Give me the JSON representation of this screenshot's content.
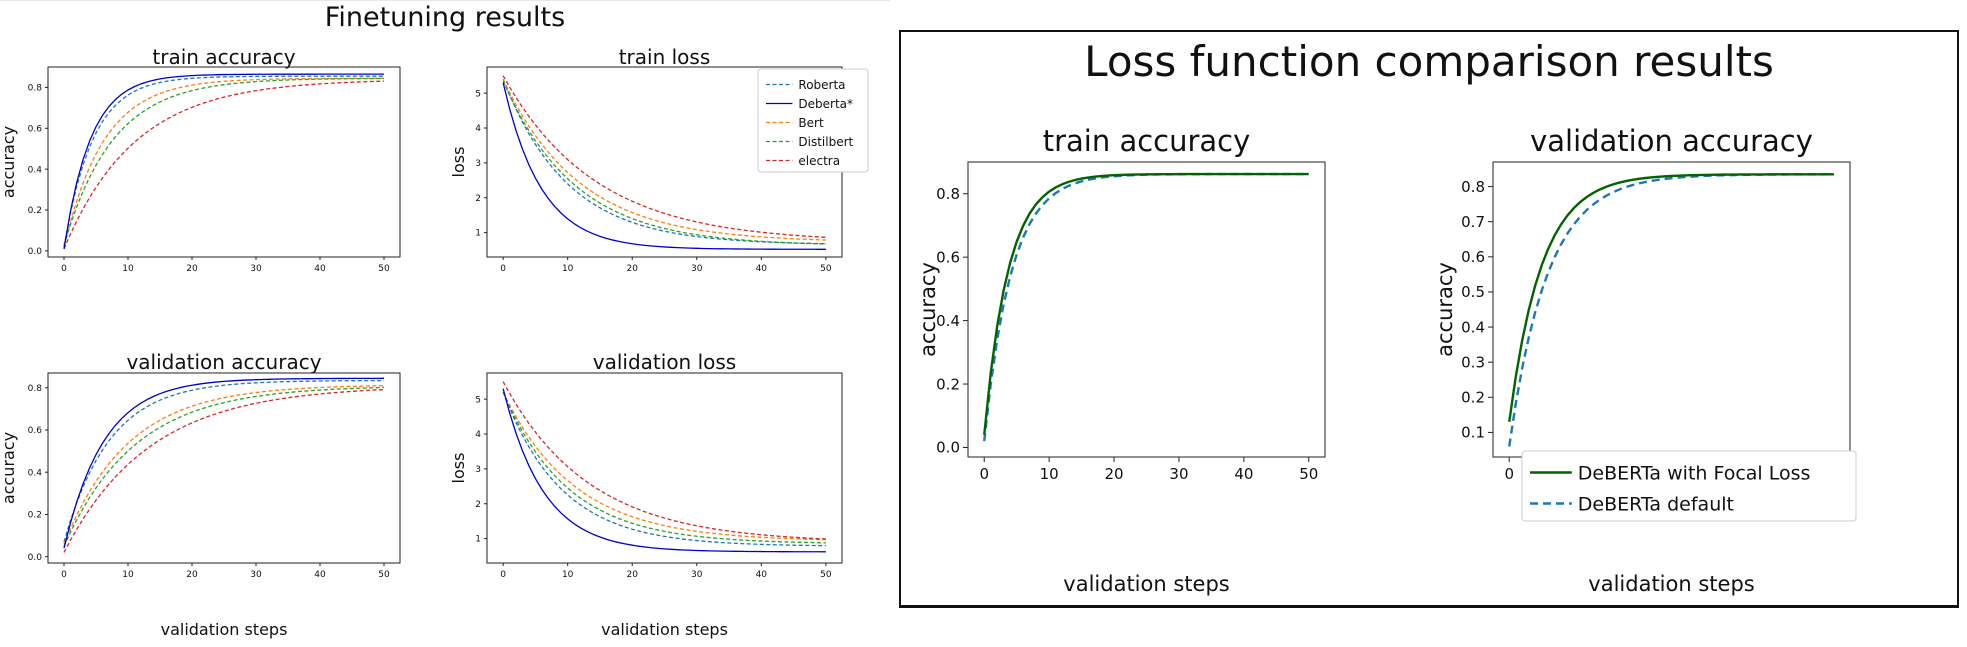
{
  "left": {
    "title": "Finetuning results"
  },
  "right": {
    "title": "Loss function comparison results"
  },
  "chart_data": [
    {
      "id": "ft-train-acc",
      "type": "line",
      "title": "train accuracy",
      "xlabel": "",
      "ylabel": "accuracy",
      "xlim": [
        -2.5,
        52.5
      ],
      "ylim": [
        -0.03,
        0.9
      ],
      "xticks": [
        0,
        10,
        20,
        30,
        40,
        50
      ],
      "yticks": [
        0.0,
        0.2,
        0.4,
        0.6,
        0.8
      ],
      "ytick_labels": [
        "0.0",
        "0.2",
        "0.4",
        "0.6",
        "0.8"
      ],
      "series": [
        {
          "name": "Roberta",
          "color": "#1f77b4",
          "dash": "dashed",
          "start": 0.02,
          "end": 0.855,
          "k": 0.22,
          "p": 1.0
        },
        {
          "name": "Deberta*",
          "color": "#0000cc",
          "dash": "solid",
          "start": 0.01,
          "end": 0.865,
          "k": 0.24,
          "p": 1.0
        },
        {
          "name": "Bert",
          "color": "#ff7f0e",
          "dash": "dashed",
          "start": 0.02,
          "end": 0.845,
          "k": 0.16,
          "p": 1.0
        },
        {
          "name": "Distilbert",
          "color": "#2ca02c",
          "dash": "dashed",
          "start": 0.03,
          "end": 0.845,
          "k": 0.13,
          "p": 1.0
        },
        {
          "name": "electra",
          "color": "#d62728",
          "dash": "dashed",
          "start": 0.01,
          "end": 0.84,
          "k": 0.09,
          "p": 1.0
        }
      ]
    },
    {
      "id": "ft-train-loss",
      "type": "line",
      "title": "train loss",
      "xlabel": "",
      "ylabel": "loss",
      "xlim": [
        -2.5,
        52.5
      ],
      "ylim": [
        0.3,
        5.75
      ],
      "xticks": [
        0,
        10,
        20,
        30,
        40,
        50
      ],
      "yticks": [
        1,
        2,
        3,
        4,
        5
      ],
      "ytick_labels": [
        "1",
        "2",
        "3",
        "4",
        "5"
      ],
      "legend": "top-right",
      "series": [
        {
          "name": "Roberta",
          "color": "#1f77b4",
          "dash": "dashed",
          "start": 5.4,
          "end": 0.65,
          "k": 0.1,
          "p": 1.0
        },
        {
          "name": "Deberta*",
          "color": "#0000cc",
          "dash": "solid",
          "start": 5.3,
          "end": 0.52,
          "k": 0.17,
          "p": 1.0
        },
        {
          "name": "Bert",
          "color": "#ff7f0e",
          "dash": "dashed",
          "start": 5.4,
          "end": 0.72,
          "k": 0.085,
          "p": 1.0
        },
        {
          "name": "Distilbert",
          "color": "#2ca02c",
          "dash": "dashed",
          "start": 5.35,
          "end": 0.62,
          "k": 0.09,
          "p": 1.0
        },
        {
          "name": "electra",
          "color": "#d62728",
          "dash": "dashed",
          "start": 5.5,
          "end": 0.72,
          "k": 0.07,
          "p": 1.0
        }
      ]
    },
    {
      "id": "ft-val-acc",
      "type": "line",
      "title": "validation accuracy",
      "xlabel": "validation steps",
      "ylabel": "accuracy",
      "xlim": [
        -2.5,
        52.5
      ],
      "ylim": [
        -0.03,
        0.87
      ],
      "xticks": [
        0,
        10,
        20,
        30,
        40,
        50
      ],
      "yticks": [
        0.0,
        0.2,
        0.4,
        0.6,
        0.8
      ],
      "ytick_labels": [
        "0.0",
        "0.2",
        "0.4",
        "0.6",
        "0.8"
      ],
      "series": [
        {
          "name": "Roberta",
          "color": "#1f77b4",
          "dash": "dashed",
          "start": 0.07,
          "end": 0.835,
          "k": 0.14,
          "p": 1.0
        },
        {
          "name": "Deberta*",
          "color": "#0000cc",
          "dash": "solid",
          "start": 0.04,
          "end": 0.845,
          "k": 0.16,
          "p": 1.0
        },
        {
          "name": "Bert",
          "color": "#ff7f0e",
          "dash": "dashed",
          "start": 0.06,
          "end": 0.815,
          "k": 0.1,
          "p": 1.0
        },
        {
          "name": "Distilbert",
          "color": "#2ca02c",
          "dash": "dashed",
          "start": 0.05,
          "end": 0.81,
          "k": 0.09,
          "p": 1.0
        },
        {
          "name": "electra",
          "color": "#d62728",
          "dash": "dashed",
          "start": 0.02,
          "end": 0.81,
          "k": 0.075,
          "p": 1.0
        }
      ]
    },
    {
      "id": "ft-val-loss",
      "type": "line",
      "title": "validation loss",
      "xlabel": "validation steps",
      "ylabel": "loss",
      "xlim": [
        -2.5,
        52.5
      ],
      "ylim": [
        0.3,
        5.75
      ],
      "xticks": [
        0,
        10,
        20,
        30,
        40,
        50
      ],
      "yticks": [
        1,
        2,
        3,
        4,
        5
      ],
      "ytick_labels": [
        "1",
        "2",
        "3",
        "4",
        "5"
      ],
      "series": [
        {
          "name": "Roberta",
          "color": "#1f77b4",
          "dash": "dashed",
          "start": 5.2,
          "end": 0.78,
          "k": 0.11,
          "p": 1.0
        },
        {
          "name": "Deberta*",
          "color": "#0000cc",
          "dash": "solid",
          "start": 5.3,
          "end": 0.62,
          "k": 0.16,
          "p": 1.0
        },
        {
          "name": "Bert",
          "color": "#ff7f0e",
          "dash": "dashed",
          "start": 5.2,
          "end": 0.92,
          "k": 0.09,
          "p": 1.0
        },
        {
          "name": "Distilbert",
          "color": "#2ca02c",
          "dash": "dashed",
          "start": 5.2,
          "end": 0.85,
          "k": 0.1,
          "p": 1.0
        },
        {
          "name": "electra",
          "color": "#d62728",
          "dash": "dashed",
          "start": 5.5,
          "end": 0.88,
          "k": 0.075,
          "p": 1.0
        }
      ]
    },
    {
      "id": "lf-train-acc",
      "type": "line",
      "title": "train accuracy",
      "xlabel": "validation steps",
      "ylabel": "accuracy",
      "xlim": [
        -2.5,
        52.5
      ],
      "ylim": [
        -0.03,
        0.9
      ],
      "xticks": [
        0,
        10,
        20,
        30,
        40,
        50
      ],
      "yticks": [
        0.0,
        0.2,
        0.4,
        0.6,
        0.8
      ],
      "ytick_labels": [
        "0.0",
        "0.2",
        "0.4",
        "0.6",
        "0.8"
      ],
      "series": [
        {
          "name": "DeBERTa with Focal Loss",
          "color": "#006400",
          "dash": "solid",
          "start": 0.04,
          "end": 0.862,
          "k": 0.27,
          "p": 1.0
        },
        {
          "name": "DeBERTa default",
          "color": "#1f77b4",
          "dash": "dashed",
          "start": 0.02,
          "end": 0.862,
          "k": 0.24,
          "p": 1.0
        }
      ]
    },
    {
      "id": "lf-val-acc",
      "type": "line",
      "title": "validation accuracy",
      "xlabel": "validation steps",
      "ylabel": "accuracy",
      "xlim": [
        -2.5,
        52.5
      ],
      "ylim": [
        0.03,
        0.87
      ],
      "xticks": [
        0,
        10,
        20,
        30,
        40,
        50
      ],
      "yticks": [
        0.1,
        0.2,
        0.3,
        0.4,
        0.5,
        0.6,
        0.7,
        0.8
      ],
      "ytick_labels": [
        "0.1",
        "0.2",
        "0.3",
        "0.4",
        "0.5",
        "0.6",
        "0.7",
        "0.8"
      ],
      "legend": "bottom-right",
      "series": [
        {
          "name": "DeBERTa with Focal Loss",
          "color": "#006400",
          "dash": "solid",
          "start": 0.13,
          "end": 0.835,
          "k": 0.2,
          "p": 1.0
        },
        {
          "name": "DeBERTa default",
          "color": "#1f77b4",
          "dash": "dashed",
          "start": 0.06,
          "end": 0.835,
          "k": 0.17,
          "p": 1.0
        }
      ]
    }
  ]
}
